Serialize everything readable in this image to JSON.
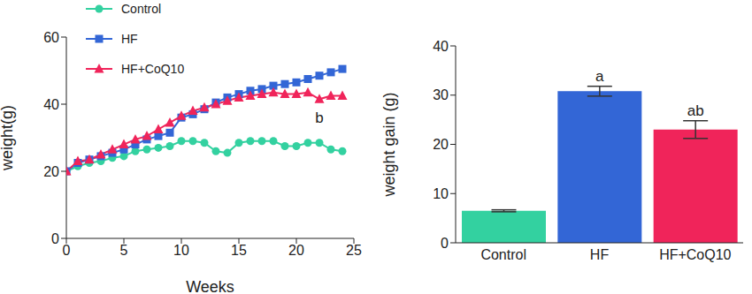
{
  "chart_data": [
    {
      "type": "line",
      "x_label": "Weeks",
      "y_label": "weight(g)",
      "x": [
        0,
        1,
        2,
        3,
        4,
        5,
        6,
        7,
        8,
        9,
        10,
        11,
        12,
        13,
        14,
        15,
        16,
        17,
        18,
        19,
        20,
        21,
        22,
        23,
        24
      ],
      "xlim": [
        0,
        25
      ],
      "xticks": [
        0,
        5,
        10,
        15,
        20,
        25
      ],
      "ylim": [
        0,
        60
      ],
      "yticks": [
        0,
        20,
        40,
        60
      ],
      "legend": "upper left",
      "series": [
        {
          "name": "Control",
          "color": "#33d1a0",
          "marker": "circle",
          "values": [
            20,
            21.5,
            22.5,
            23,
            24,
            24.5,
            26,
            26.5,
            27,
            27.5,
            29,
            29,
            28.5,
            26,
            25.5,
            28.5,
            29,
            29,
            29,
            27.5,
            27.5,
            28.5,
            28.5,
            26.5,
            26
          ]
        },
        {
          "name": "HF",
          "color": "#3366d6",
          "marker": "square",
          "values": [
            20,
            22.5,
            23.5,
            24.5,
            25.5,
            26.5,
            28,
            29.5,
            30.5,
            31.5,
            36,
            37,
            38.5,
            40.5,
            42,
            43,
            44,
            44.5,
            45.5,
            46,
            46.5,
            47.5,
            48.5,
            49.5,
            50.5
          ]
        },
        {
          "name": "HF+CoQ10",
          "color": "#f0245a",
          "marker": "triangle",
          "values": [
            20,
            23,
            23.5,
            25,
            26.5,
            28,
            29.5,
            30.5,
            32.5,
            34.5,
            36.5,
            38,
            39,
            40,
            41,
            42,
            42.5,
            43,
            43.5,
            43,
            43,
            43.5,
            41.5,
            42.5,
            42.5
          ]
        }
      ],
      "annotations": [
        {
          "text": "b",
          "x": 22,
          "y": 36
        }
      ]
    },
    {
      "type": "bar",
      "y_label": "weight gain (g)",
      "categories": [
        "Control",
        "HF",
        "HF+CoQ10"
      ],
      "values": [
        6.5,
        30.8,
        23
      ],
      "errors": [
        0.2,
        1,
        1.8
      ],
      "colors": [
        "#33d1a0",
        "#3366d6",
        "#f0245a"
      ],
      "ylim": [
        0,
        40
      ],
      "yticks": [
        0,
        10,
        20,
        30,
        40
      ],
      "annotations": [
        {
          "category": "HF",
          "text": "a"
        },
        {
          "category": "HF+CoQ10",
          "text": "ab"
        }
      ]
    }
  ]
}
